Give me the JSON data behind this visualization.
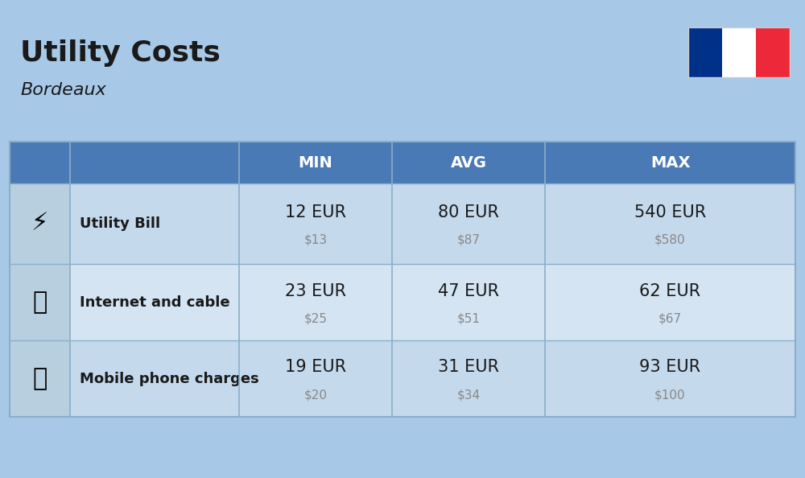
{
  "title": "Utility Costs",
  "subtitle": "Bordeaux",
  "background_color": "#a8c8e8",
  "header_color": "#4a7ab5",
  "header_text_color": "#ffffff",
  "row_color_light": "#c5d9ed",
  "row_color_lighter": "#d4e4f2",
  "icon_col_color": "#b8cfe0",
  "col_separator_color": "#8aaec8",
  "headers": [
    "",
    "",
    "MIN",
    "AVG",
    "MAX"
  ],
  "rows": [
    {
      "label": "Utility Bill",
      "min_eur": "12 EUR",
      "min_usd": "$13",
      "avg_eur": "80 EUR",
      "avg_usd": "$87",
      "max_eur": "540 EUR",
      "max_usd": "$580"
    },
    {
      "label": "Internet and cable",
      "min_eur": "23 EUR",
      "min_usd": "$25",
      "avg_eur": "47 EUR",
      "avg_usd": "$51",
      "max_eur": "62 EUR",
      "max_usd": "$67"
    },
    {
      "label": "Mobile phone charges",
      "min_eur": "19 EUR",
      "min_usd": "$20",
      "avg_eur": "31 EUR",
      "avg_usd": "$34",
      "max_eur": "93 EUR",
      "max_usd": "$100"
    }
  ],
  "flag_colors": [
    "#003189",
    "#ffffff",
    "#ed2939"
  ],
  "eur_fontsize": 15,
  "usd_fontsize": 11,
  "label_fontsize": 13,
  "header_fontsize": 14
}
